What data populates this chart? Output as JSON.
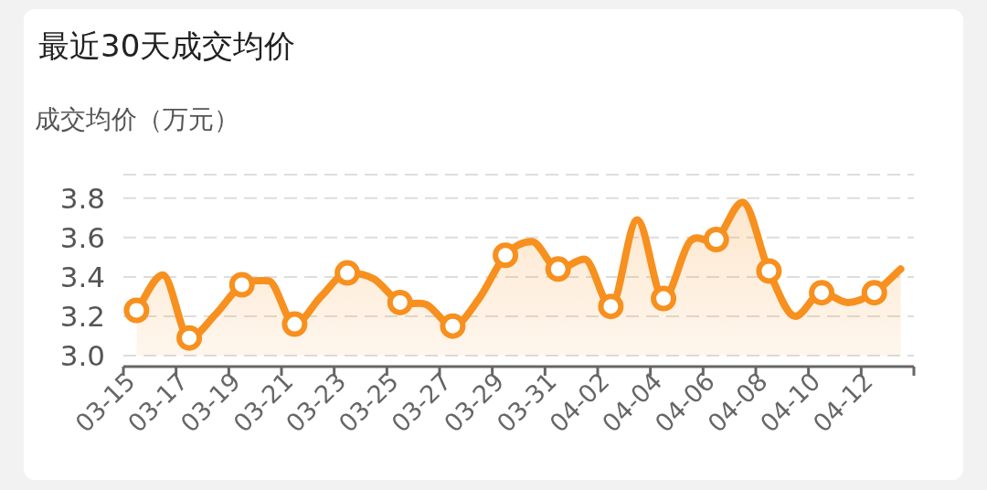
{
  "chart_data": {
    "type": "area",
    "title": "最近30天成交均价",
    "ylabel": "成交均价（万元）",
    "categories": [
      "03-15",
      null,
      "03-17",
      null,
      "03-19",
      null,
      "03-21",
      null,
      "03-23",
      null,
      "03-25",
      null,
      "03-27",
      null,
      "03-29",
      null,
      "03-31",
      null,
      "04-02",
      null,
      "04-04",
      null,
      "04-06",
      null,
      "04-08",
      null,
      "04-10",
      null,
      "04-12",
      null
    ],
    "series": [
      {
        "color": "#f7901e",
        "values": [
          3.23,
          3.41,
          3.09,
          3.21,
          3.36,
          3.38,
          3.16,
          3.3,
          3.42,
          3.39,
          3.27,
          3.26,
          3.15,
          3.29,
          3.51,
          3.58,
          3.44,
          3.49,
          3.25,
          3.69,
          3.29,
          3.58,
          3.59,
          3.78,
          3.43,
          3.2,
          3.32,
          3.27,
          3.32,
          3.44
        ]
      }
    ],
    "ylim": [
      3.0,
      3.92
    ],
    "yticks": [
      {
        "value": 3.0,
        "label": "3.0"
      },
      {
        "value": 3.2,
        "label": "3.2"
      },
      {
        "value": 3.4,
        "label": "3.4"
      },
      {
        "value": 3.6,
        "label": "3.6"
      },
      {
        "value": 3.8,
        "label": "3.8"
      },
      {
        "value": 3.92,
        "label": null
      }
    ],
    "grid": "y",
    "marker": "circle",
    "line_style": "solid"
  }
}
